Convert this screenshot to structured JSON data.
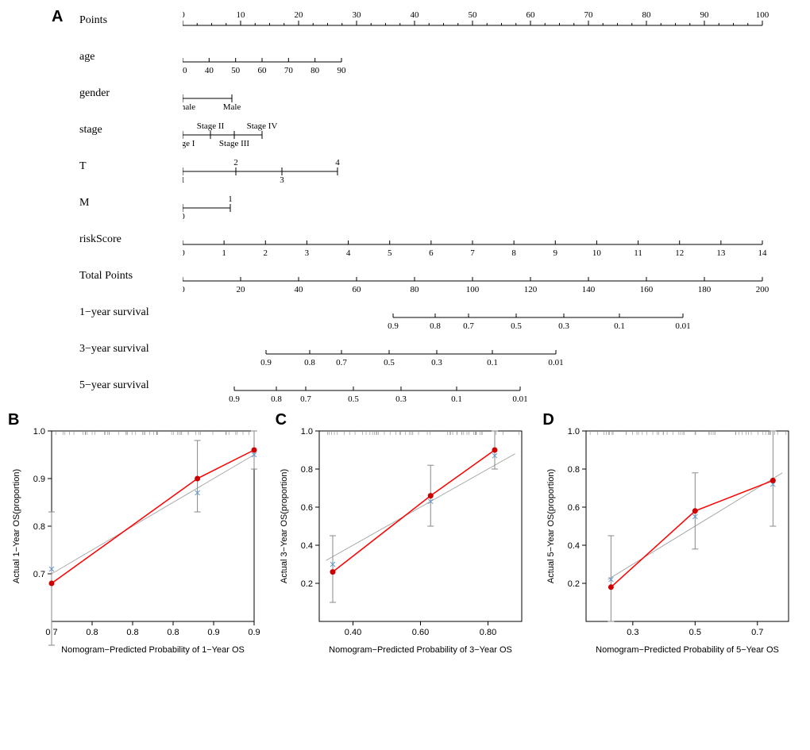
{
  "panelA": {
    "label": "A",
    "rows": [
      {
        "name": "Points",
        "type": "top",
        "domain": [
          0,
          100
        ],
        "step": 10,
        "axisStart": 0,
        "axisEnd": 730
      },
      {
        "name": "age",
        "type": "ticks",
        "domain": [
          30,
          90
        ],
        "step": 10,
        "axisStart": 0,
        "axisEnd": 200
      },
      {
        "name": "gender",
        "type": "cat",
        "items": [
          {
            "label": "Female",
            "x": 0
          },
          {
            "label": "Male",
            "x": 62
          }
        ],
        "above": [
          "Male"
        ],
        "below": [
          "Female"
        ]
      },
      {
        "name": "stage",
        "type": "cat",
        "items": [
          {
            "label": "Stage I",
            "x": 0,
            "pos": "below"
          },
          {
            "label": "Stage II",
            "x": 35,
            "pos": "above"
          },
          {
            "label": "Stage III",
            "x": 65,
            "pos": "below"
          },
          {
            "label": "Stage IV",
            "x": 100,
            "pos": "above"
          }
        ]
      },
      {
        "name": "T",
        "type": "cat",
        "items": [
          {
            "label": "1",
            "x": 0,
            "pos": "below"
          },
          {
            "label": "2",
            "x": 67,
            "pos": "above"
          },
          {
            "label": "3",
            "x": 125,
            "pos": "below"
          },
          {
            "label": "4",
            "x": 195,
            "pos": "above"
          }
        ]
      },
      {
        "name": "M",
        "type": "cat",
        "items": [
          {
            "label": "0",
            "x": 0,
            "pos": "below"
          },
          {
            "label": "1",
            "x": 60,
            "pos": "above"
          }
        ]
      },
      {
        "name": "riskScore",
        "type": "ticks",
        "domain": [
          0,
          14
        ],
        "step": 1,
        "axisStart": 0,
        "axisEnd": 730
      },
      {
        "name": "Total Points",
        "type": "ticks",
        "domain": [
          0,
          200
        ],
        "step": 20,
        "axisStart": 0,
        "axisEnd": 730
      },
      {
        "name": "1−year survival",
        "type": "surv",
        "ticks": [
          0.9,
          0.8,
          0.7,
          0.5,
          0.3,
          0.1,
          0.01
        ],
        "positions": [
          265,
          318,
          360,
          420,
          480,
          550,
          630
        ]
      },
      {
        "name": "3−year survival",
        "type": "surv",
        "ticks": [
          0.9,
          0.8,
          0.7,
          0.5,
          0.3,
          0.1,
          0.01
        ],
        "positions": [
          105,
          160,
          200,
          260,
          320,
          390,
          470
        ]
      },
      {
        "name": "5−year survival",
        "type": "surv",
        "ticks": [
          0.9,
          0.8,
          0.7,
          0.5,
          0.3,
          0.1,
          0.01
        ],
        "positions": [
          65,
          118,
          155,
          215,
          275,
          345,
          425
        ]
      }
    ]
  },
  "calib": [
    {
      "label": "B",
      "xlabel": "Nomogram−Predicted Probability of 1−Year OS",
      "ylabel": "Actual 1−Year OS(proportion)",
      "xlim": [
        0.7,
        0.95
      ],
      "xticks": [
        0.7,
        0.75,
        0.8,
        0.85,
        0.9,
        0.95
      ],
      "ylim": [
        0.6,
        1.0
      ],
      "yticks": [
        0.7,
        0.8,
        0.9,
        1.0
      ],
      "ideal": [
        [
          0.7,
          0.7
        ],
        [
          0.95,
          0.95
        ]
      ],
      "obs": [
        [
          0.7,
          0.68
        ],
        [
          0.88,
          0.9
        ],
        [
          0.95,
          0.96
        ]
      ],
      "err": [
        [
          0.7,
          0.55,
          0.83
        ],
        [
          0.88,
          0.83,
          0.98
        ],
        [
          0.95,
          0.92,
          1.0
        ]
      ],
      "bx": [
        [
          0.7,
          0.71
        ],
        [
          0.88,
          0.87
        ],
        [
          0.95,
          0.95
        ]
      ],
      "ylabel_color": "#000",
      "line_color": "#ff0000",
      "dot_color": "#cc0000"
    },
    {
      "label": "C",
      "xlabel": "Nomogram−Predicted Probability of 3−Year OS",
      "ylabel": "Actual 3−Year OS(proportion)",
      "xlim": [
        0.3,
        0.9
      ],
      "xticks": [
        0.4,
        0.6,
        0.8
      ],
      "ylim": [
        0.0,
        1.0
      ],
      "yticks": [
        0.2,
        0.4,
        0.6,
        0.8,
        1.0
      ],
      "ideal": [
        [
          0.32,
          0.32
        ],
        [
          0.88,
          0.88
        ]
      ],
      "obs": [
        [
          0.34,
          0.26
        ],
        [
          0.63,
          0.66
        ],
        [
          0.82,
          0.9
        ]
      ],
      "err": [
        [
          0.34,
          0.1,
          0.45
        ],
        [
          0.63,
          0.5,
          0.82
        ],
        [
          0.82,
          0.8,
          1.0
        ]
      ],
      "bx": [
        [
          0.34,
          0.3
        ],
        [
          0.63,
          0.63
        ],
        [
          0.82,
          0.87
        ]
      ],
      "line_color": "#ff0000",
      "dot_color": "#cc0000"
    },
    {
      "label": "D",
      "xlabel": "Nomogram−Predicted Probability of 5−Year OS",
      "ylabel": "Actual 5−Year OS(proportion)",
      "xlim": [
        0.15,
        0.8
      ],
      "xticks": [
        0.3,
        0.5,
        0.7
      ],
      "ylim": [
        0.0,
        1.0
      ],
      "yticks": [
        0.2,
        0.4,
        0.6,
        0.8,
        1.0
      ],
      "ideal": [
        [
          0.22,
          0.22
        ],
        [
          0.78,
          0.78
        ]
      ],
      "obs": [
        [
          0.23,
          0.18
        ],
        [
          0.5,
          0.58
        ],
        [
          0.75,
          0.74
        ]
      ],
      "err": [
        [
          0.23,
          0.0,
          0.45
        ],
        [
          0.5,
          0.38,
          0.78
        ],
        [
          0.75,
          0.5,
          1.0
        ]
      ],
      "bx": [
        [
          0.23,
          0.22
        ],
        [
          0.5,
          0.55
        ],
        [
          0.75,
          0.72
        ]
      ],
      "line_color": "#ff0000",
      "dot_color": "#cc0000"
    }
  ],
  "colors": {
    "background": "#ffffff",
    "axis": "#000000",
    "ideal": "#aaaaaa",
    "err": "#888888",
    "bluex": "#6699cc"
  }
}
